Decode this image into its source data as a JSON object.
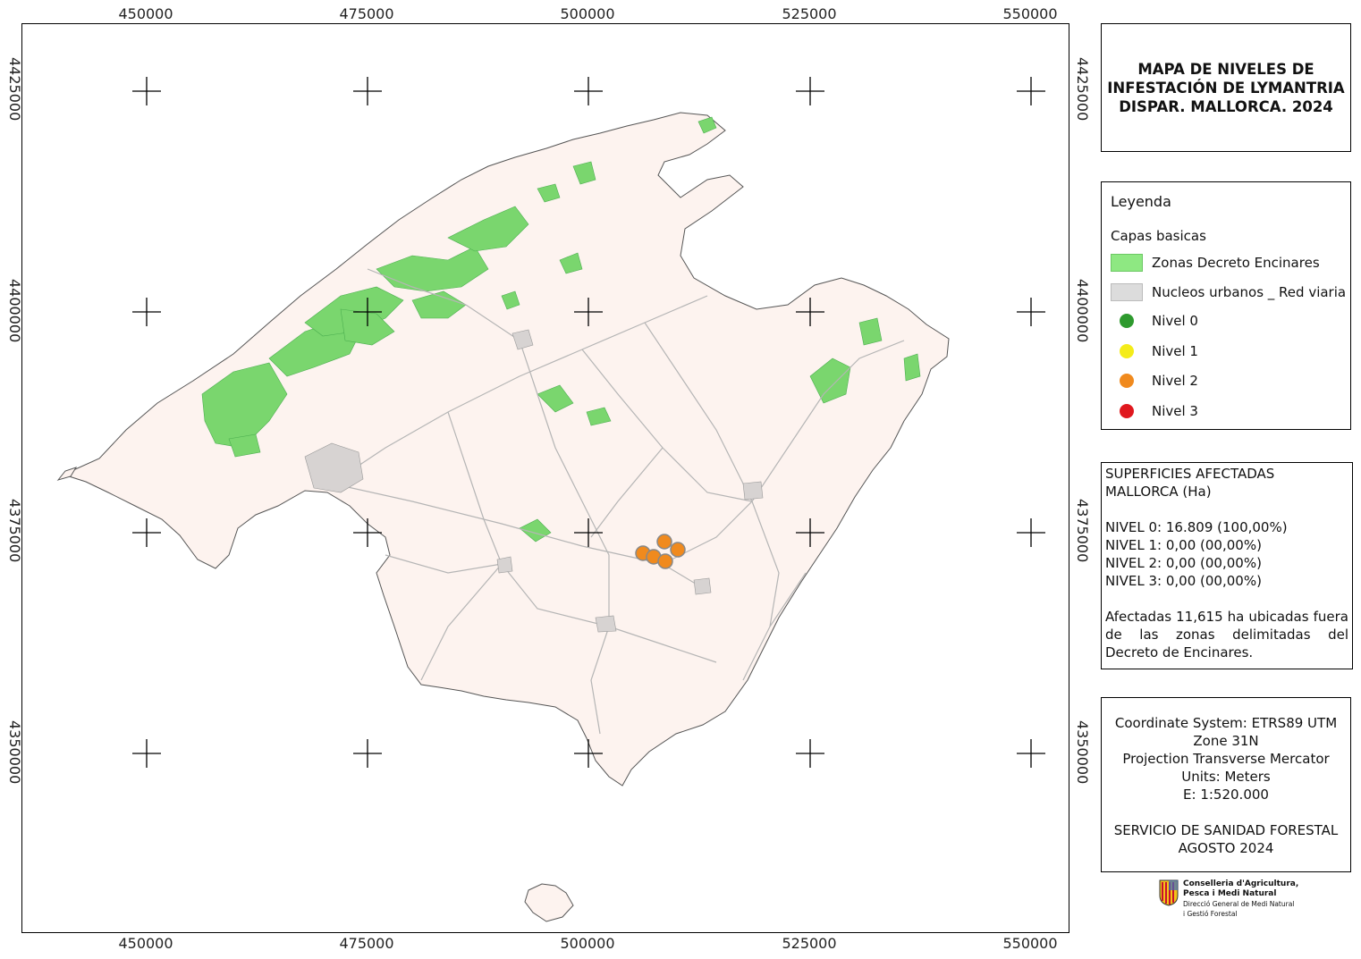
{
  "axis": {
    "x_ticks": [
      "450000",
      "475000",
      "500000",
      "525000",
      "550000"
    ],
    "y_ticks": [
      "4425000",
      "4400000",
      "4375000",
      "4350000"
    ]
  },
  "title": "MAPA DE NIVELES DE INFESTACIÓN DE LYMANTRIA DISPAR. MALLORCA. 2024",
  "legend": {
    "heading": "Leyenda",
    "group": "Capas basicas",
    "items": [
      {
        "label": "Zonas Decreto Encinares",
        "kind": "swatch",
        "color": "#8ee882"
      },
      {
        "label": "Nucleos urbanos _ Red viaria",
        "kind": "swatch",
        "color": "#dcdcdc"
      },
      {
        "label": "Nivel 0",
        "kind": "dot",
        "color": "#2e9a2e"
      },
      {
        "label": "Nivel 1",
        "kind": "dot",
        "color": "#f4ec1a"
      },
      {
        "label": "Nivel 2",
        "kind": "dot",
        "color": "#f08a1e"
      },
      {
        "label": "Nivel 3",
        "kind": "dot",
        "color": "#e0181e"
      }
    ]
  },
  "stats": {
    "heading1": "SUPERFICIES AFECTADAS",
    "heading2": "MALLORCA (Ha)",
    "lines": [
      "NIVEL 0: 16.809 (100,00%)",
      "NIVEL 1: 0,00 (00,00%)",
      "NIVEL 2: 0,00 (00,00%)",
      "NIVEL 3: 0,00 (00,00%)"
    ],
    "note": "Afectadas 11,615 ha ubicadas fuera de las zonas delimitadas del Decreto de Encinares."
  },
  "coords": {
    "lines": [
      "Coordinate System: ETRS89 UTM",
      "Zone 31N",
      "Projection Transverse Mercator",
      "Units: Meters",
      "E: 1:520.000"
    ],
    "credit1": "SERVICIO DE SANIDAD FORESTAL",
    "credit2": "AGOSTO 2024"
  },
  "logo": {
    "line1": "Conselleria d'Agricultura,",
    "line2": "Pesca i Medi Natural",
    "line3": "Direcció General de Medi Natural",
    "line4": "i Gestió Forestal"
  },
  "colors": {
    "island_fill": "#fdf3ef",
    "encinares": "#7ad66e",
    "roads": "#b5b5b5",
    "nivel2": "#f08a1e"
  }
}
